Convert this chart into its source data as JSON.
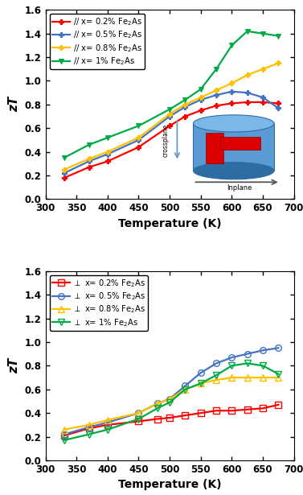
{
  "top": {
    "series": [
      {
        "label": "// x= 0.2% Fe$_2$As",
        "color": "#FF0000",
        "marker": "P",
        "mfc": "#FF0000",
        "T": [
          330,
          370,
          400,
          450,
          500,
          525,
          550,
          575,
          600,
          625,
          650,
          675
        ],
        "zT": [
          0.18,
          0.27,
          0.32,
          0.44,
          0.62,
          0.7,
          0.75,
          0.79,
          0.81,
          0.82,
          0.82,
          0.81
        ]
      },
      {
        "label": "// x= 0.5% Fe$_2$As",
        "color": "#4472C4",
        "marker": "P",
        "mfc": "#4472C4",
        "T": [
          330,
          370,
          400,
          450,
          500,
          525,
          550,
          575,
          600,
          625,
          650,
          675
        ],
        "zT": [
          0.22,
          0.32,
          0.38,
          0.5,
          0.7,
          0.78,
          0.84,
          0.88,
          0.91,
          0.9,
          0.86,
          0.77
        ]
      },
      {
        "label": "// x= 0.8% Fe$_2$As",
        "color": "#FFC000",
        "marker": "P",
        "mfc": "#FFC000",
        "T": [
          330,
          370,
          400,
          450,
          500,
          525,
          550,
          575,
          600,
          625,
          650,
          675
        ],
        "zT": [
          0.25,
          0.34,
          0.4,
          0.52,
          0.72,
          0.8,
          0.86,
          0.92,
          0.98,
          1.05,
          1.1,
          1.15
        ]
      },
      {
        "label": "// x= 1% Fe$_2$As",
        "color": "#00AA44",
        "marker": "v",
        "mfc": "#00AA44",
        "T": [
          330,
          370,
          400,
          450,
          500,
          525,
          550,
          575,
          600,
          625,
          650,
          675
        ],
        "zT": [
          0.35,
          0.46,
          0.52,
          0.62,
          0.76,
          0.84,
          0.93,
          1.1,
          1.3,
          1.42,
          1.4,
          1.38
        ]
      }
    ],
    "ylabel": "zT",
    "xlabel": "Temperature (K)",
    "xlim": [
      300,
      700
    ],
    "ylim": [
      0.0,
      1.6
    ],
    "yticks": [
      0.0,
      0.2,
      0.4,
      0.6,
      0.8,
      1.0,
      1.2,
      1.4,
      1.6
    ],
    "xticks": [
      300,
      350,
      400,
      450,
      500,
      550,
      600,
      650,
      700
    ]
  },
  "bottom": {
    "series": [
      {
        "label": "$\\perp$ x= 0.2% Fe$_2$As",
        "color": "#FF0000",
        "marker": "s",
        "T": [
          330,
          370,
          400,
          450,
          480,
          500,
          525,
          550,
          575,
          600,
          625,
          650,
          675
        ],
        "zT": [
          0.21,
          0.27,
          0.3,
          0.33,
          0.35,
          0.36,
          0.38,
          0.4,
          0.42,
          0.42,
          0.43,
          0.44,
          0.47
        ]
      },
      {
        "label": "$\\perp$ x= 0.5% Fe$_2$As",
        "color": "#4472C4",
        "marker": "o",
        "T": [
          330,
          370,
          400,
          450,
          480,
          500,
          525,
          550,
          575,
          600,
          625,
          650,
          675
        ],
        "zT": [
          0.22,
          0.28,
          0.32,
          0.4,
          0.48,
          0.52,
          0.63,
          0.74,
          0.82,
          0.87,
          0.9,
          0.93,
          0.95
        ]
      },
      {
        "label": "$\\perp$ x= 0.8% Fe$_2$As",
        "color": "#FFC000",
        "marker": "^",
        "T": [
          330,
          370,
          400,
          450,
          480,
          500,
          525,
          550,
          575,
          600,
          625,
          650,
          675
        ],
        "zT": [
          0.26,
          0.3,
          0.34,
          0.4,
          0.48,
          0.52,
          0.6,
          0.65,
          0.68,
          0.7,
          0.7,
          0.7,
          0.7
        ]
      },
      {
        "label": "$\\perp$ x= 1% Fe$_2$As",
        "color": "#00AA44",
        "marker": "v",
        "T": [
          330,
          370,
          400,
          450,
          480,
          500,
          525,
          550,
          575,
          600,
          625,
          650,
          675
        ],
        "zT": [
          0.17,
          0.22,
          0.26,
          0.35,
          0.44,
          0.49,
          0.6,
          0.65,
          0.72,
          0.8,
          0.82,
          0.8,
          0.73
        ]
      }
    ],
    "ylabel": "zT",
    "xlabel": "Temperature (K)",
    "xlim": [
      300,
      700
    ],
    "ylim": [
      0.0,
      1.6
    ],
    "yticks": [
      0.0,
      0.2,
      0.4,
      0.6,
      0.8,
      1.0,
      1.2,
      1.4,
      1.6
    ],
    "xticks": [
      300,
      350,
      400,
      450,
      500,
      550,
      600,
      650,
      700
    ]
  },
  "inset": {
    "cyl_color_body": "#5B9BD5",
    "cyl_color_dark": "#2E6DA4",
    "cyl_color_top": "#7BB8E8",
    "red_color": "#DD0000",
    "crossplane_color": "#6699CC",
    "inplane_color": "#555555"
  }
}
